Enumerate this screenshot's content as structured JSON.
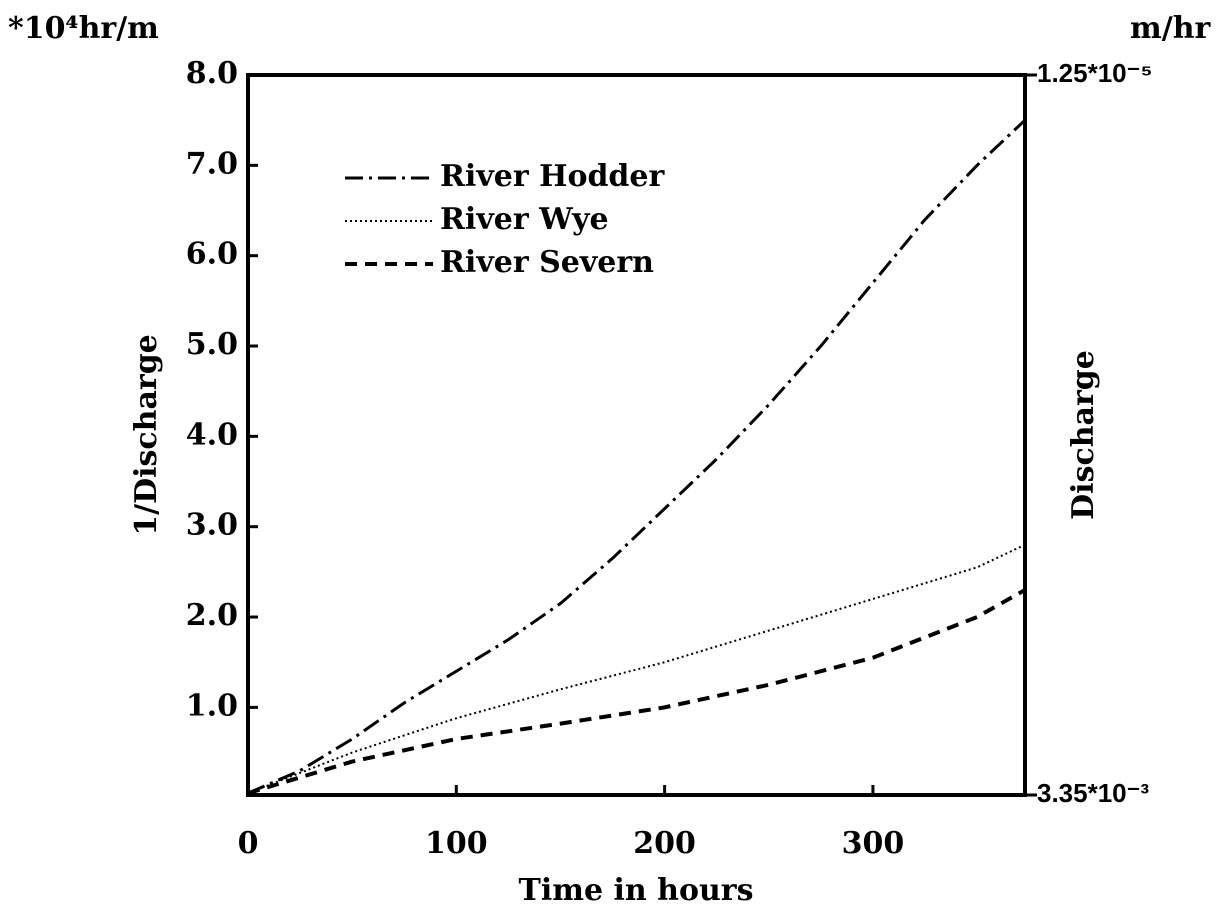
{
  "chart_data": {
    "type": "line",
    "y_unit": "*10⁴hr/m",
    "y2_unit": "m/hr",
    "xlabel": "Time in hours",
    "ylabel": "1/Discharge",
    "y2label": "Discharge",
    "xlim": [
      0,
      373
    ],
    "xticks": [
      0,
      100,
      200,
      300
    ],
    "ylim": [
      0.03,
      8
    ],
    "yticks": [
      {
        "value": 1,
        "label": "1.0"
      },
      {
        "value": 2,
        "label": "2.0"
      },
      {
        "value": 3,
        "label": "3.0"
      },
      {
        "value": 4,
        "label": "4.0"
      },
      {
        "value": 5,
        "label": "5.0"
      },
      {
        "value": 6,
        "label": "6.0"
      },
      {
        "value": 7,
        "label": "7.0"
      },
      {
        "value": 8,
        "label": "8.0"
      }
    ],
    "y2lim": [
      0.00335,
      1.25e-05
    ],
    "y2ticks": [
      {
        "value": 0.00335,
        "label": "3.35*10⁻³"
      },
      {
        "value": 1.25e-05,
        "label": "1.25*10⁻⁵"
      }
    ],
    "legend": "upper left",
    "series": [
      {
        "name": "River Hodder",
        "color": "#000000",
        "dash": "dashdot",
        "x": [
          0,
          25,
          50,
          75,
          100,
          125,
          150,
          175,
          200,
          225,
          250,
          275,
          300,
          325,
          350,
          373
        ],
        "values": [
          0.05,
          0.3,
          0.65,
          1.05,
          1.4,
          1.75,
          2.15,
          2.65,
          3.2,
          3.75,
          4.35,
          5.0,
          5.7,
          6.4,
          7.0,
          7.5
        ]
      },
      {
        "name": "River Wye",
        "color": "#000000",
        "dash": "dotted",
        "x": [
          0,
          50,
          100,
          150,
          200,
          250,
          300,
          350,
          373
        ],
        "values": [
          0.05,
          0.5,
          0.88,
          1.2,
          1.5,
          1.85,
          2.2,
          2.55,
          2.8
        ]
      },
      {
        "name": "River Severn",
        "color": "#000000",
        "dash": "dashed",
        "x": [
          0,
          50,
          100,
          150,
          200,
          250,
          300,
          350,
          373
        ],
        "values": [
          0.05,
          0.4,
          0.65,
          0.82,
          1.0,
          1.25,
          1.55,
          2.0,
          2.3
        ]
      }
    ]
  }
}
